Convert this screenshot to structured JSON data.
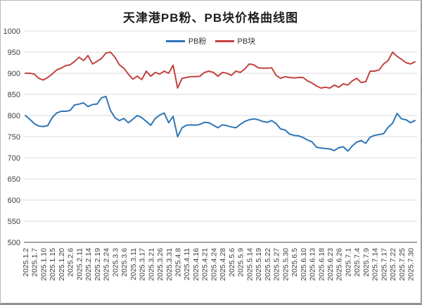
{
  "title": "天津港PB粉、PB块价格曲线图",
  "chart_data": {
    "type": "line",
    "title": "天津港PB粉、PB块价格曲线图",
    "legend_position": "top-center",
    "grid": true,
    "gridline_color": "#d9d9d9",
    "axis_line_color": "#4d4d4d",
    "axis_label_color": "#404040",
    "ylim": [
      500,
      1000
    ],
    "ytick_step": 50,
    "label_interval": 2,
    "x_labels": [
      "2025.1.2",
      "2025.1.7",
      "2025.1.10",
      "2025.1.15",
      "2025.1.20",
      "2025.2.6",
      "2025.2.11",
      "2025.2.14",
      "2025.2.19",
      "2025.2.24",
      "2025.3.3",
      "2025.3.6",
      "2025.3.11",
      "2025.3.17",
      "2025.3.21",
      "2025.3.26",
      "2025.3.31",
      "2025.4.8",
      "2025.4.11",
      "2025.4.16",
      "2025.4.21",
      "2025.4.24",
      "2025.4.28",
      "2025.5.6",
      "2025.5.9",
      "2025.5.14",
      "2025.5.19",
      "2025.5.22",
      "2025.5.27",
      "2025.5.30",
      "2025.6.5",
      "2025.6.10",
      "2025.6.13",
      "2025.6.18",
      "2025.6.23",
      "2025.6.26",
      "2025.7.1",
      "2025.7.4",
      "2025.7.9",
      "2025.7.14",
      "2025.7.17",
      "2025.7.22",
      "2025.7.25",
      "2025.7.30"
    ],
    "series": [
      {
        "name": "PB粉",
        "color": "#2E75B6",
        "values": [
          800,
          791,
          781,
          775,
          774,
          776,
          795,
          806,
          810,
          810,
          812,
          825,
          827,
          830,
          821,
          826,
          827,
          842,
          845,
          812,
          795,
          788,
          793,
          783,
          791,
          800,
          795,
          786,
          777,
          793,
          801,
          806,
          783,
          798,
          750,
          771,
          777,
          778,
          777,
          779,
          784,
          783,
          777,
          771,
          778,
          776,
          773,
          771,
          779,
          786,
          790,
          792,
          790,
          786,
          784,
          788,
          781,
          768,
          766,
          756,
          753,
          752,
          748,
          742,
          738,
          725,
          723,
          722,
          721,
          717,
          724,
          726,
          716,
          728,
          737,
          741,
          734,
          749,
          753,
          755,
          757,
          772,
          782,
          805,
          792,
          790,
          783,
          788
        ]
      },
      {
        "name": "PB块",
        "color": "#C0443E",
        "values": [
          900,
          900,
          898,
          888,
          884,
          890,
          898,
          908,
          912,
          918,
          920,
          928,
          938,
          930,
          942,
          922,
          928,
          935,
          948,
          950,
          938,
          920,
          912,
          898,
          886,
          893,
          885,
          905,
          893,
          902,
          898,
          905,
          900,
          919,
          865,
          888,
          890,
          892,
          892,
          893,
          902,
          905,
          902,
          893,
          902,
          900,
          895,
          905,
          902,
          910,
          922,
          920,
          913,
          912,
          912,
          913,
          895,
          888,
          892,
          890,
          889,
          890,
          890,
          882,
          877,
          870,
          865,
          867,
          865,
          872,
          867,
          875,
          872,
          882,
          888,
          878,
          880,
          905,
          905,
          908,
          922,
          930,
          950,
          940,
          933,
          925,
          922,
          927
        ]
      }
    ]
  }
}
